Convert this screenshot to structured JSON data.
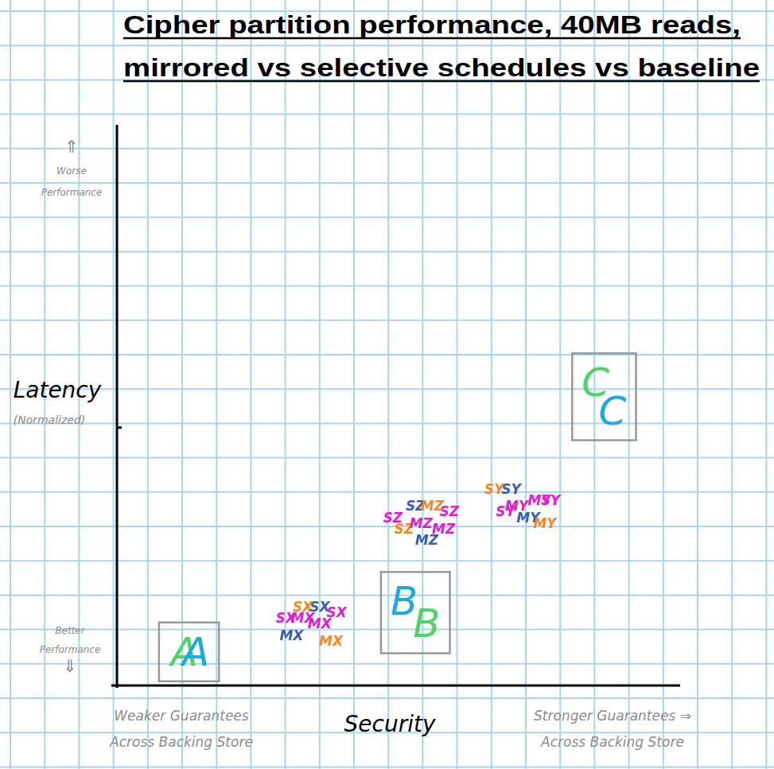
{
  "chart_data": {
    "type": "scatter",
    "title": [
      "Cipher partition performance, 40MB reads,",
      "mirrored vs selective schedules vs baseline"
    ],
    "xlabel": "Security",
    "ylabel": "Latency",
    "ylabel_note": "(Normalized)",
    "y_high_note": [
      "⇑",
      "Worse",
      "Performance"
    ],
    "y_low_note": [
      "Better",
      "Performance",
      "⇓"
    ],
    "x_low_note": [
      "Weaker Guarantees",
      "Across Backing Store"
    ],
    "x_high_note": [
      "Stronger Guarantees ⇒",
      "Across Backing Store"
    ],
    "xlim": [
      0,
      10
    ],
    "ylim": [
      0,
      10
    ],
    "yticks": [
      4.6
    ],
    "tick_labels": false,
    "series": [
      {
        "name": "A",
        "color": "#4fd46a",
        "marker": "boxed",
        "x": [
          1.2
        ],
        "values": [
          0.6
        ]
      },
      {
        "name": "A",
        "color": "#1fa9e3",
        "marker": "boxed",
        "x": [
          1.4
        ],
        "values": [
          0.6
        ]
      },
      {
        "name": "B",
        "color": "#1fa9e3",
        "marker": "boxed",
        "x": [
          5.1
        ],
        "values": [
          1.5
        ]
      },
      {
        "name": "B",
        "color": "#4fd46a",
        "marker": "boxed",
        "x": [
          5.5
        ],
        "values": [
          1.1
        ]
      },
      {
        "name": "C",
        "color": "#4fd46a",
        "marker": "boxed",
        "x": [
          8.5
        ],
        "values": [
          5.4
        ]
      },
      {
        "name": "C",
        "color": "#1fa9e3",
        "marker": "boxed",
        "x": [
          8.8
        ],
        "values": [
          4.9
        ]
      },
      {
        "name": "SX",
        "color": "#f5891f",
        "marker": "letters",
        "x": [
          3.3
        ],
        "values": [
          1.4
        ]
      },
      {
        "name": "SX",
        "color": "#3b5fb3",
        "marker": "letters",
        "x": [
          3.6
        ],
        "values": [
          1.4
        ]
      },
      {
        "name": "SX",
        "color": "#e020d0",
        "marker": "letters",
        "x": [
          3.0,
          3.9
        ],
        "values": [
          1.2,
          1.3
        ]
      },
      {
        "name": "MX",
        "color": "#e020d0",
        "marker": "letters",
        "x": [
          3.3,
          3.6
        ],
        "values": [
          1.2,
          1.1
        ]
      },
      {
        "name": "MX",
        "color": "#3b5fb3",
        "marker": "letters",
        "x": [
          3.1
        ],
        "values": [
          0.9
        ]
      },
      {
        "name": "MX",
        "color": "#f5891f",
        "marker": "letters",
        "x": [
          3.8
        ],
        "values": [
          0.8
        ]
      },
      {
        "name": "SZ",
        "color": "#e020d0",
        "marker": "letters",
        "x": [
          4.9,
          5.9
        ],
        "values": [
          3.0,
          3.1
        ]
      },
      {
        "name": "SZ",
        "color": "#3b5fb3",
        "marker": "letters",
        "x": [
          5.3
        ],
        "values": [
          3.2
        ]
      },
      {
        "name": "SZ",
        "color": "#f5891f",
        "marker": "letters",
        "x": [
          5.1
        ],
        "values": [
          2.8
        ]
      },
      {
        "name": "MZ",
        "color": "#f5891f",
        "marker": "letters",
        "x": [
          5.6
        ],
        "values": [
          3.2
        ]
      },
      {
        "name": "MZ",
        "color": "#e020d0",
        "marker": "letters",
        "x": [
          5.4,
          5.8
        ],
        "values": [
          2.9,
          2.8
        ]
      },
      {
        "name": "MZ",
        "color": "#3b5fb3",
        "marker": "letters",
        "x": [
          5.5
        ],
        "values": [
          2.6
        ]
      },
      {
        "name": "SY",
        "color": "#f5891f",
        "marker": "letters",
        "x": [
          6.7
        ],
        "values": [
          3.5
        ]
      },
      {
        "name": "SY",
        "color": "#3b5fb3",
        "marker": "letters",
        "x": [
          7.0
        ],
        "values": [
          3.5
        ]
      },
      {
        "name": "SY",
        "color": "#e020d0",
        "marker": "letters",
        "x": [
          6.9,
          7.7
        ],
        "values": [
          3.1,
          3.3
        ]
      },
      {
        "name": "MY",
        "color": "#e020d0",
        "marker": "letters",
        "x": [
          7.1,
          7.5
        ],
        "values": [
          3.2,
          3.3
        ]
      },
      {
        "name": "MY",
        "color": "#3b5fb3",
        "marker": "letters",
        "x": [
          7.3
        ],
        "values": [
          3.0
        ]
      },
      {
        "name": "MY",
        "color": "#f5891f",
        "marker": "letters",
        "x": [
          7.6
        ],
        "values": [
          2.9
        ]
      }
    ]
  }
}
